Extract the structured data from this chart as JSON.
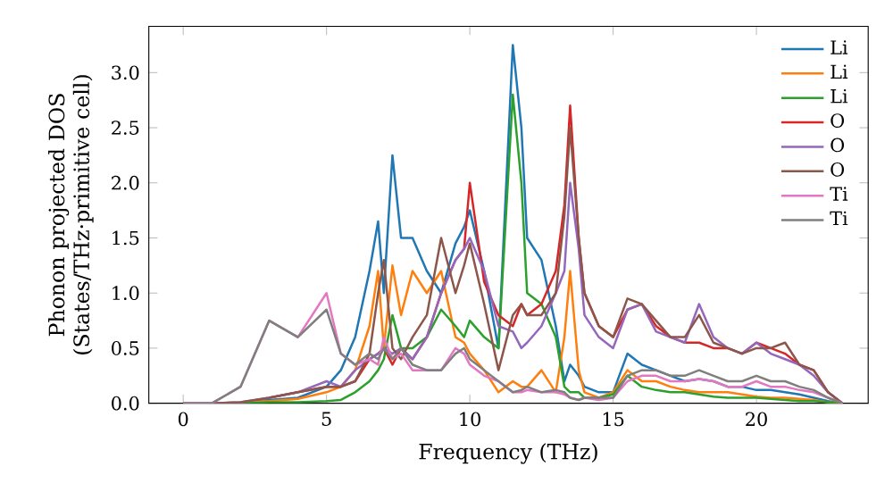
{
  "chart_data": {
    "type": "line",
    "xlabel": "Frequency (THz)",
    "ylabel": "Phonon projected DOS (States/THz·primitive cell)",
    "xlim": [
      -1.2,
      23.9
    ],
    "ylim": [
      0,
      3.42
    ],
    "xticks": [
      0,
      5,
      10,
      15,
      20
    ],
    "yticks": [
      {
        "value": 0,
        "label": "0.0"
      },
      0.5,
      {
        "value": 1,
        "label": "1.0"
      },
      1.5,
      {
        "value": 2,
        "label": "2.0"
      },
      2.5,
      {
        "value": 3,
        "label": "3.0"
      }
    ],
    "legend": "top right",
    "grid": false,
    "marker": "none",
    "line_style": "solid",
    "x": [
      0,
      1,
      2,
      3,
      4,
      5,
      5.5,
      6,
      6.5,
      6.8,
      7,
      7.3,
      7.6,
      8,
      8.5,
      9,
      9.5,
      9.8,
      10,
      10.5,
      11,
      11.5,
      11.8,
      12,
      12.5,
      13,
      13.3,
      13.5,
      13.8,
      14,
      14.5,
      15,
      15.5,
      16,
      16.5,
      17,
      17.5,
      18,
      18.5,
      19,
      19.5,
      20,
      20.5,
      21,
      21.5,
      22,
      22.5,
      23
    ],
    "series": [
      {
        "name": "Li",
        "color": "#1f77b4",
        "values": [
          null,
          null,
          0.01,
          0.03,
          0.05,
          0.15,
          0.3,
          0.6,
          1.2,
          1.65,
          1.0,
          2.25,
          1.5,
          1.5,
          1.2,
          1.0,
          1.45,
          1.6,
          1.75,
          1.2,
          0.5,
          3.25,
          2.5,
          1.5,
          1.3,
          0.7,
          0.2,
          0.35,
          0.25,
          0.15,
          0.1,
          0.1,
          0.45,
          0.35,
          0.3,
          0.25,
          0.2,
          0.22,
          0.2,
          0.15,
          0.15,
          0.12,
          0.12,
          0.1,
          0.08,
          0.05,
          0.02,
          0
        ]
      },
      {
        "name": "Li",
        "color": "#ff7f0e",
        "values": [
          null,
          null,
          0.01,
          0.02,
          0.04,
          0.1,
          0.15,
          0.3,
          0.7,
          1.2,
          0.5,
          1.25,
          0.8,
          1.2,
          1.0,
          1.2,
          0.6,
          0.55,
          0.45,
          0.3,
          0.1,
          0.2,
          0.15,
          0.15,
          0.3,
          0.1,
          0.6,
          1.2,
          0.3,
          0.1,
          0.05,
          0.1,
          0.3,
          0.2,
          0.2,
          0.15,
          0.12,
          0.1,
          0.1,
          0.1,
          0.08,
          0.06,
          0.05,
          0.05,
          0.04,
          0.03,
          0.01,
          0
        ]
      },
      {
        "name": "Li",
        "color": "#2ca02c",
        "values": [
          0,
          0,
          0,
          0.01,
          0.01,
          0.02,
          0.03,
          0.1,
          0.2,
          0.3,
          0.4,
          0.8,
          0.5,
          0.5,
          0.6,
          0.85,
          0.7,
          0.6,
          0.75,
          0.6,
          0.5,
          2.8,
          2.0,
          1.0,
          0.9,
          0.6,
          0.15,
          0.1,
          0.1,
          0.05,
          0.05,
          0.08,
          0.25,
          0.15,
          0.12,
          0.1,
          0.1,
          0.08,
          0.06,
          0.05,
          0.05,
          0.05,
          0.04,
          0.03,
          0.02,
          0.02,
          0.01,
          0
        ]
      },
      {
        "name": "O",
        "color": "#d62728",
        "values": [
          null,
          null,
          null,
          0.05,
          0.1,
          0.15,
          0.15,
          0.2,
          0.4,
          0.45,
          0.5,
          0.35,
          0.5,
          0.4,
          0.6,
          1.0,
          1.3,
          1.4,
          2.0,
          1.1,
          0.8,
          0.7,
          0.9,
          0.8,
          0.9,
          1.2,
          1.8,
          2.7,
          1.5,
          1.0,
          0.7,
          0.6,
          0.85,
          0.9,
          0.7,
          0.6,
          0.55,
          0.55,
          0.5,
          0.5,
          0.45,
          0.55,
          0.5,
          0.45,
          0.35,
          0.3,
          0.1,
          0
        ]
      },
      {
        "name": "O",
        "color": "#9467bd",
        "values": [
          0,
          0,
          0.01,
          0.05,
          0.1,
          0.2,
          0.15,
          0.3,
          0.4,
          0.45,
          0.5,
          0.45,
          0.5,
          0.4,
          0.6,
          1.0,
          1.3,
          1.4,
          1.5,
          1.2,
          0.7,
          0.65,
          0.5,
          0.55,
          0.7,
          1.0,
          1.2,
          2.0,
          1.4,
          0.8,
          0.6,
          0.5,
          0.85,
          0.9,
          0.65,
          0.6,
          0.55,
          0.9,
          0.6,
          0.5,
          0.45,
          0.55,
          0.45,
          0.4,
          0.35,
          0.25,
          0.1,
          0
        ]
      },
      {
        "name": "O",
        "color": "#8c564b",
        "values": [
          0,
          0,
          0.01,
          0.05,
          0.1,
          0.15,
          0.15,
          0.2,
          0.45,
          1.0,
          1.3,
          0.5,
          0.4,
          0.6,
          0.8,
          1.5,
          1.0,
          1.25,
          1.45,
          0.9,
          0.3,
          0.8,
          0.9,
          0.8,
          0.8,
          1.0,
          1.7,
          2.5,
          1.5,
          1.0,
          0.7,
          0.6,
          0.95,
          0.9,
          0.75,
          0.6,
          0.6,
          0.8,
          0.55,
          0.5,
          0.45,
          0.5,
          0.5,
          0.55,
          0.35,
          0.3,
          0.1,
          0
        ]
      },
      {
        "name": "Ti",
        "color": "#e377c2",
        "values": [
          0,
          0,
          0.15,
          0.75,
          0.6,
          1.0,
          0.45,
          0.35,
          0.4,
          0.35,
          0.6,
          0.4,
          0.45,
          0.3,
          0.3,
          0.3,
          0.5,
          0.45,
          0.35,
          0.25,
          0.2,
          0.1,
          0.1,
          0.12,
          0.1,
          0.1,
          0.08,
          0.05,
          0.03,
          0.05,
          0.03,
          0.05,
          0.2,
          0.25,
          0.25,
          0.2,
          0.2,
          0.22,
          0.2,
          0.15,
          0.15,
          0.2,
          0.15,
          0.15,
          0.12,
          0.1,
          0.05,
          0
        ]
      },
      {
        "name": "Ti",
        "color": "#7f7f7f",
        "values": [
          0,
          0,
          0.15,
          0.75,
          0.6,
          0.85,
          0.45,
          0.35,
          0.45,
          0.4,
          0.5,
          0.4,
          0.5,
          0.35,
          0.3,
          0.3,
          0.45,
          0.5,
          0.4,
          0.3,
          0.2,
          0.1,
          0.12,
          0.15,
          0.1,
          0.12,
          0.1,
          0.05,
          0.03,
          0.05,
          0.05,
          0.05,
          0.25,
          0.3,
          0.3,
          0.25,
          0.25,
          0.3,
          0.25,
          0.2,
          0.2,
          0.25,
          0.2,
          0.2,
          0.15,
          0.12,
          0.05,
          0
        ]
      }
    ]
  }
}
